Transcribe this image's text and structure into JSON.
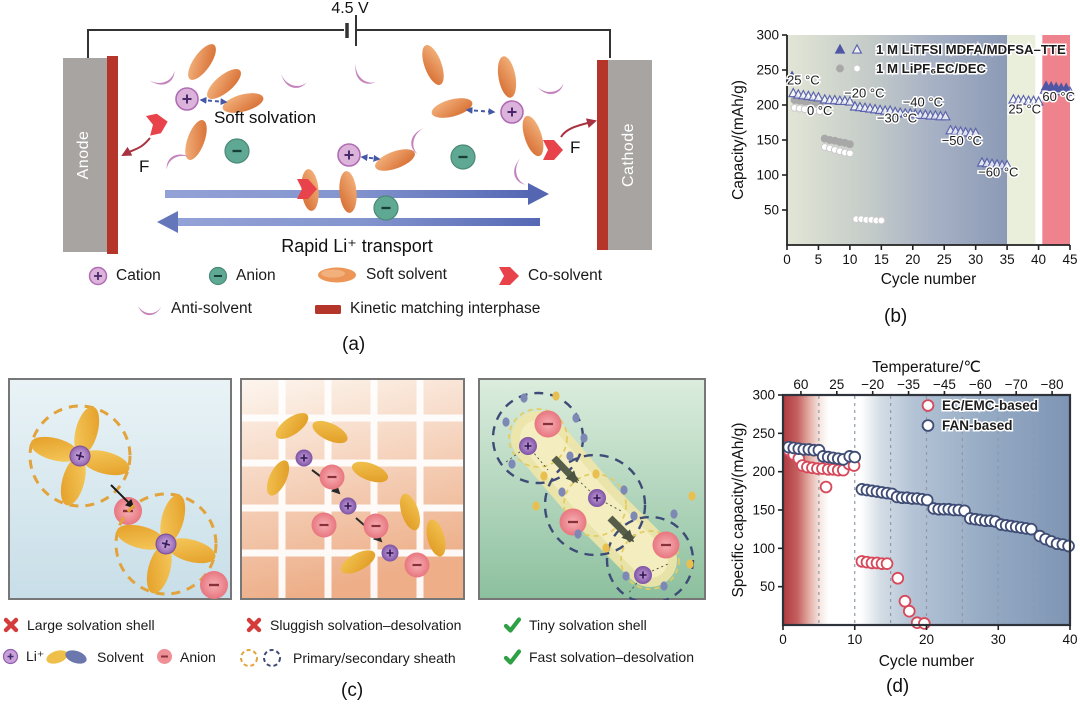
{
  "panel_a": {
    "panel_label": "(a)",
    "voltage_label": "4.5 V",
    "anode_label": "Anode",
    "cathode_label": "Cathode",
    "soft_solvation_label": "Soft solvation",
    "transport_label": "Rapid Li⁺ transport",
    "fluorine_label_left": "F",
    "fluorine_label_right": "F",
    "legend": [
      {
        "icon": "cation-icon",
        "label": "Cation"
      },
      {
        "icon": "anion-icon",
        "label": "Anion"
      },
      {
        "icon": "soft-solvent-icon",
        "label": "Soft solvent"
      },
      {
        "icon": "co-solvent-icon",
        "label": "Co-solvent"
      },
      {
        "icon": "anti-solvent-icon",
        "label": "Anti-solvent"
      },
      {
        "icon": "interphase-icon",
        "label": "Kinetic matching interphase"
      }
    ],
    "colors": {
      "electrode_gray": "#a7a4a2",
      "interphase_red": "#b5352b",
      "co_solvent_red": "#e8434a",
      "cation_purple": "#dbb3db",
      "anion_teal": "#5fa893",
      "soft_solvent_orange": "#e8874a",
      "anti_solvent_purple": "#c583bd",
      "transport_arrow_blue": "#6577bb"
    }
  },
  "panel_c": {
    "panel_label": "(c)",
    "legend_row1": [
      {
        "icon": "cross-icon",
        "label": "Large solvation shell"
      },
      {
        "icon": "cross-icon",
        "label": "Sluggish solvation–desolvation"
      },
      {
        "icon": "check-icon",
        "label": "Tiny solvation shell"
      }
    ],
    "legend_row2": [
      {
        "icon": "li-ion-icon",
        "label": "Li⁺"
      },
      {
        "icon": "solvent-pair-icon",
        "label": "Solvent"
      },
      {
        "icon": "anion-icon",
        "label": "Anion"
      },
      {
        "icon": "sheath-icon",
        "label": "Primary/secondary sheath"
      },
      {
        "icon": "check-icon",
        "label": "Fast solvation–desolvation"
      }
    ]
  },
  "chart_data": [
    {
      "id": "chart-b",
      "panel_label": "(b)",
      "type": "scatter",
      "xlabel": "Cycle number",
      "ylabel": "Capacity/(mAh/g)",
      "xlim": [
        0,
        45
      ],
      "ylim": [
        0,
        300
      ],
      "xticks": [
        0,
        5,
        10,
        15,
        20,
        25,
        30,
        35,
        40,
        45
      ],
      "yticks": [
        50,
        100,
        150,
        200,
        250,
        300
      ],
      "bands": [
        {
          "x0": 0,
          "x1": 35,
          "fill": "url(#bgGradB)"
        },
        {
          "x0": 35,
          "x1": 39.5,
          "fill": "#e9efdb"
        },
        {
          "x0": 39.5,
          "x1": 40.6,
          "fill": "#ffffff"
        },
        {
          "x0": 40.6,
          "x1": 45,
          "fill": "#ef838d"
        }
      ],
      "legend": {
        "items": [
          {
            "label": "1 M LiTFSI MDFA/MDFSA–TTE",
            "markers": [
              {
                "shape": "triangle",
                "variant": "filled",
                "color": "#4f57a5"
              },
              {
                "shape": "triangle",
                "variant": "open",
                "color": "#5a62ad"
              }
            ]
          },
          {
            "label": "1 M LiPF₆EC/DEC",
            "markers": [
              {
                "shape": "circle",
                "variant": "filled",
                "color": "#a8a8a8"
              },
              {
                "shape": "circle",
                "variant": "open",
                "color": "#cccccc"
              }
            ]
          }
        ]
      },
      "annotations": [
        {
          "text": "25 °C",
          "x": 2.6,
          "y": 229
        },
        {
          "text": "0 °C",
          "x": 5.2,
          "y": 186
        },
        {
          "text": "−20 °C",
          "x": 12.3,
          "y": 211
        },
        {
          "text": "−30 °C",
          "x": 17.5,
          "y": 175
        },
        {
          "text": "−40 °C",
          "x": 21.6,
          "y": 198
        },
        {
          "text": "−50 °C",
          "x": 27.8,
          "y": 143
        },
        {
          "text": "−60 °C",
          "x": 33.6,
          "y": 98
        },
        {
          "text": "25 °C",
          "x": 37.8,
          "y": 188
        },
        {
          "text": "60 °C",
          "x": 43.2,
          "y": 206
        }
      ],
      "series": [
        {
          "key": "lipf6-filled",
          "name": "1 M LiPF₆EC/DEC (filled)",
          "marker": "circle",
          "variant": "filled",
          "color": "#a8a8a8",
          "points": [
            [
              0.9,
              236
            ],
            [
              1.2,
              207
            ],
            [
              2,
              206
            ],
            [
              2.8,
              205
            ],
            [
              3.6,
              204
            ],
            [
              4.4,
              203
            ],
            [
              5.2,
              202
            ],
            [
              6,
              152
            ],
            [
              6.8,
              150
            ],
            [
              7.6,
              149
            ],
            [
              8.4,
              147
            ],
            [
              9.2,
              146
            ],
            [
              10,
              144
            ]
          ]
        },
        {
          "key": "lipf6-open",
          "name": "1 M LiPF₆EC/DEC (open)",
          "marker": "circle",
          "variant": "open",
          "color": "#cccccc",
          "points": [
            [
              1.2,
              196
            ],
            [
              2,
              195
            ],
            [
              2.8,
              194
            ],
            [
              3.6,
              193
            ],
            [
              4.4,
              192
            ],
            [
              5.2,
              191
            ],
            [
              6,
              140
            ],
            [
              6.8,
              138
            ],
            [
              7.6,
              136
            ],
            [
              8.4,
              134
            ],
            [
              9.2,
              132
            ],
            [
              10,
              131
            ],
            [
              11,
              37
            ],
            [
              11.8,
              37
            ],
            [
              12.6,
              36
            ],
            [
              13.4,
              36
            ],
            [
              14.2,
              35
            ],
            [
              15,
              35
            ]
          ]
        },
        {
          "key": "litfsi-open",
          "name": "1 M LiTFSI MDFA/MDFSA–TTE (open)",
          "marker": "triangle",
          "variant": "open",
          "color": "#5a62ad",
          "points": [
            [
              1,
              217
            ],
            [
              1.8,
              215
            ],
            [
              2.6,
              214
            ],
            [
              3.4,
              213
            ],
            [
              4.2,
              212
            ],
            [
              5,
              211
            ],
            [
              6,
              208
            ],
            [
              6.8,
              207
            ],
            [
              7.6,
              207
            ],
            [
              8.4,
              206
            ],
            [
              9.2,
              206
            ],
            [
              10,
              205
            ],
            [
              10.8,
              198
            ],
            [
              11.6,
              197
            ],
            [
              12.4,
              196
            ],
            [
              13.2,
              195
            ],
            [
              14,
              194
            ],
            [
              14.8,
              193
            ],
            [
              15.6,
              192
            ],
            [
              16.4,
              192
            ],
            [
              17.2,
              190
            ],
            [
              18,
              189
            ],
            [
              18.8,
              188
            ],
            [
              19.6,
              188
            ],
            [
              20.4,
              187
            ],
            [
              21.2,
              186
            ],
            [
              22,
              186
            ],
            [
              22.8,
              185
            ],
            [
              23.6,
              185
            ],
            [
              24.4,
              184
            ],
            [
              25.2,
              184
            ],
            [
              26,
              164
            ],
            [
              26.8,
              163
            ],
            [
              27.6,
              162
            ],
            [
              28.4,
              161
            ],
            [
              29.2,
              160
            ],
            [
              30,
              160
            ],
            [
              31,
              118
            ],
            [
              31.8,
              117
            ],
            [
              32.6,
              116
            ],
            [
              33.4,
              115
            ],
            [
              34.2,
              114
            ],
            [
              35,
              114
            ],
            [
              36,
              208
            ],
            [
              36.8,
              207
            ],
            [
              37.6,
              207
            ],
            [
              38.4,
              206
            ],
            [
              39.2,
              206
            ],
            [
              40,
              205
            ],
            [
              41,
              222
            ],
            [
              41.8,
              221
            ],
            [
              42.6,
              221
            ],
            [
              43.4,
              220
            ],
            [
              44.2,
              220
            ],
            [
              45,
              219
            ]
          ]
        },
        {
          "key": "litfsi-filled",
          "name": "1 M LiTFSI MDFA/MDFSA–TTE (filled)",
          "marker": "triangle",
          "variant": "filled",
          "color": "#4f57a5",
          "points": [
            [
              0.8,
              241
            ],
            [
              41.2,
              227
            ],
            [
              42,
              226
            ],
            [
              42.8,
              225
            ],
            [
              43.6,
              224
            ],
            [
              44.4,
              224
            ]
          ]
        }
      ]
    },
    {
      "id": "chart-d",
      "panel_label": "(d)",
      "type": "scatter",
      "xlabel": "Cycle number",
      "ylabel": "Specific capacity/(mAh/g)",
      "top_axis_label": "Temperature/℃",
      "top_ticks": [
        {
          "x": 2.5,
          "label": "60"
        },
        {
          "x": 7.5,
          "label": "25"
        },
        {
          "x": 12.5,
          "label": "−20"
        },
        {
          "x": 17.5,
          "label": "−35"
        },
        {
          "x": 22.5,
          "label": "−45"
        },
        {
          "x": 27.5,
          "label": "−60"
        },
        {
          "x": 32.5,
          "label": "−70"
        },
        {
          "x": 37.5,
          "label": "−80"
        }
      ],
      "xlim": [
        0,
        40
      ],
      "ylim": [
        0,
        300
      ],
      "xticks": [
        0,
        10,
        20,
        30,
        40
      ],
      "yticks": [
        50,
        100,
        150,
        200,
        250,
        300
      ],
      "grid_x": [
        5,
        10,
        15,
        20,
        25,
        30,
        35
      ],
      "bands": [
        {
          "x0": 0,
          "x1": 40,
          "fill": "url(#bgGradD)"
        }
      ],
      "legend": {
        "items": [
          {
            "label": "EC/EMC-based",
            "markers": [
              {
                "shape": "circle",
                "variant": "open",
                "color": "#d6495a"
              }
            ]
          },
          {
            "label": "FAN-based",
            "markers": [
              {
                "shape": "circle",
                "variant": "open",
                "color": "#3f4c75"
              }
            ]
          }
        ]
      },
      "series": [
        {
          "key": "ec-emc-based",
          "name": "EC/EMC-based",
          "marker": "circle",
          "variant": "open",
          "color": "#d6495a",
          "points": [
            [
              0.8,
              228
            ],
            [
              1.5,
              222
            ],
            [
              2.2,
              217
            ],
            [
              2.7,
              208
            ],
            [
              3.4,
              206
            ],
            [
              4.1,
              205
            ],
            [
              4.8,
              204
            ],
            [
              5.5,
              204
            ],
            [
              6,
              180
            ],
            [
              6.3,
              203
            ],
            [
              7,
              203
            ],
            [
              7.7,
              202
            ],
            [
              8.4,
              202
            ],
            [
              9.2,
              210
            ],
            [
              9.9,
              208
            ],
            [
              11,
              83
            ],
            [
              11.7,
              82
            ],
            [
              12.4,
              81
            ],
            [
              13.1,
              81
            ],
            [
              13.8,
              80
            ],
            [
              14.5,
              80
            ],
            [
              16,
              61
            ],
            [
              17,
              31
            ],
            [
              17.6,
              18
            ],
            [
              18.7,
              3
            ],
            [
              19.7,
              2
            ]
          ]
        },
        {
          "key": "fan-based",
          "name": "FAN-based",
          "marker": "circle",
          "variant": "open",
          "color": "#3f4c75",
          "points": [
            [
              0.8,
              232
            ],
            [
              1.5,
              231
            ],
            [
              2.2,
              230
            ],
            [
              2.9,
              229
            ],
            [
              3.6,
              229
            ],
            [
              4.3,
              228
            ],
            [
              5,
              228
            ],
            [
              5.6,
              220
            ],
            [
              6.3,
              219
            ],
            [
              7,
              218
            ],
            [
              7.7,
              217
            ],
            [
              8.4,
              216
            ],
            [
              9.3,
              220
            ],
            [
              10,
              219
            ],
            [
              11,
              177
            ],
            [
              11.7,
              176
            ],
            [
              12.4,
              175
            ],
            [
              13.1,
              174
            ],
            [
              13.8,
              173
            ],
            [
              14.5,
              172
            ],
            [
              15.2,
              171
            ],
            [
              15.9,
              167
            ],
            [
              16.6,
              166
            ],
            [
              17.3,
              166
            ],
            [
              18,
              165
            ],
            [
              18.7,
              165
            ],
            [
              19.4,
              164
            ],
            [
              20.1,
              163
            ],
            [
              21,
              152
            ],
            [
              21.7,
              151
            ],
            [
              22.4,
              151
            ],
            [
              23.1,
              151
            ],
            [
              23.8,
              150
            ],
            [
              24.5,
              150
            ],
            [
              25.3,
              149
            ],
            [
              26.1,
              139
            ],
            [
              26.8,
              138
            ],
            [
              27.5,
              137
            ],
            [
              28.2,
              136
            ],
            [
              28.9,
              136
            ],
            [
              29.6,
              135
            ],
            [
              30.4,
              131
            ],
            [
              31.1,
              130
            ],
            [
              31.8,
              129
            ],
            [
              32.5,
              128
            ],
            [
              33.2,
              127
            ],
            [
              33.9,
              126
            ],
            [
              34.6,
              125
            ],
            [
              35.8,
              116
            ],
            [
              36.6,
              112
            ],
            [
              37.4,
              109
            ],
            [
              38.2,
              106
            ],
            [
              39,
              105
            ],
            [
              39.8,
              103
            ]
          ]
        }
      ]
    }
  ]
}
